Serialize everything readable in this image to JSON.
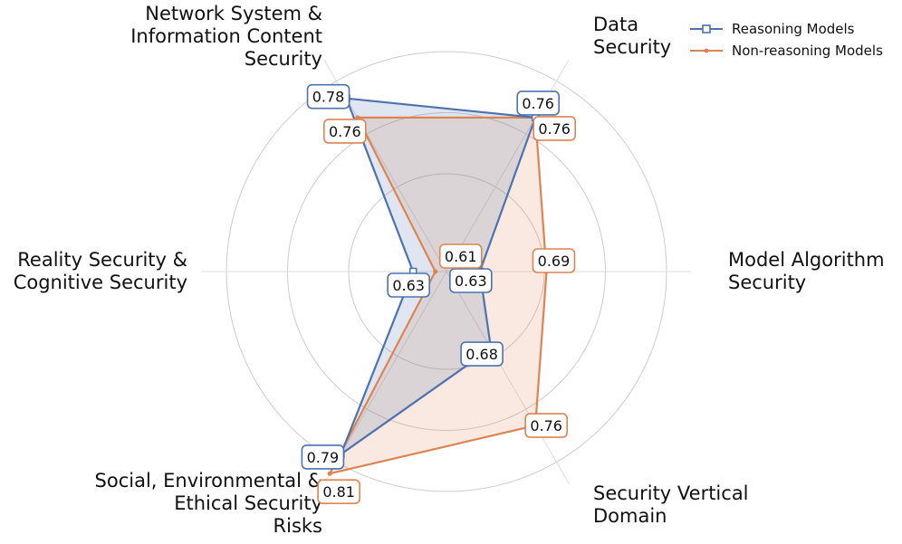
{
  "chart_data": {
    "type": "radar",
    "categories": [
      "Data\nSecurity",
      "Model Algorithm\nSecurity",
      "Security Vertical\nDomain",
      "Social, Environmental &\nEthical Security\nRisks",
      "Reality Security &\nCognitive Security",
      "Network System &\nInformation Content\nSecurity"
    ],
    "series": [
      {
        "name": "Reasoning Models",
        "color": "#4c72b0",
        "marker": "square",
        "values": [
          0.76,
          0.63,
          0.68,
          0.79,
          0.63,
          0.78
        ]
      },
      {
        "name": "Non-reasoning Models",
        "color": "#dd8452",
        "marker": "circle",
        "values": [
          0.76,
          0.69,
          0.76,
          0.81,
          0.61,
          0.76
        ]
      }
    ],
    "rlim": [
      0.6,
      0.82
    ],
    "grid": true,
    "legend_position": "top-right"
  }
}
